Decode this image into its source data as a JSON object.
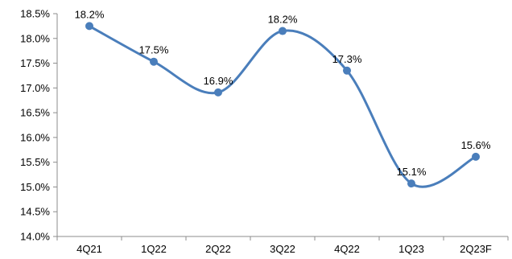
{
  "chart_data": {
    "type": "line",
    "title": "",
    "xlabel": "",
    "ylabel": "",
    "categories": [
      "4Q21",
      "1Q22",
      "2Q22",
      "3Q22",
      "4Q22",
      "1Q23",
      "2Q23F"
    ],
    "series": [
      {
        "values": [
          18.25,
          17.53,
          16.91,
          18.15,
          17.35,
          15.07,
          15.61
        ],
        "data_labels": [
          "18.2%",
          "17.5%",
          "16.9%",
          "18.2%",
          "17.3%",
          "15.1%",
          "15.6%"
        ],
        "color": "#4a7ebb",
        "smooth": true
      }
    ],
    "ylim": [
      14.0,
      18.5
    ],
    "y_tick_values": [
      14.0,
      14.5,
      15.0,
      15.5,
      16.0,
      16.5,
      17.0,
      17.5,
      18.0,
      18.5
    ],
    "y_tick_labels": [
      "14.0%",
      "14.5%",
      "15.0%",
      "15.5%",
      "16.0%",
      "16.5%",
      "17.0%",
      "17.5%",
      "18.0%",
      "18.5%"
    ],
    "grid": false,
    "legend": "none"
  }
}
